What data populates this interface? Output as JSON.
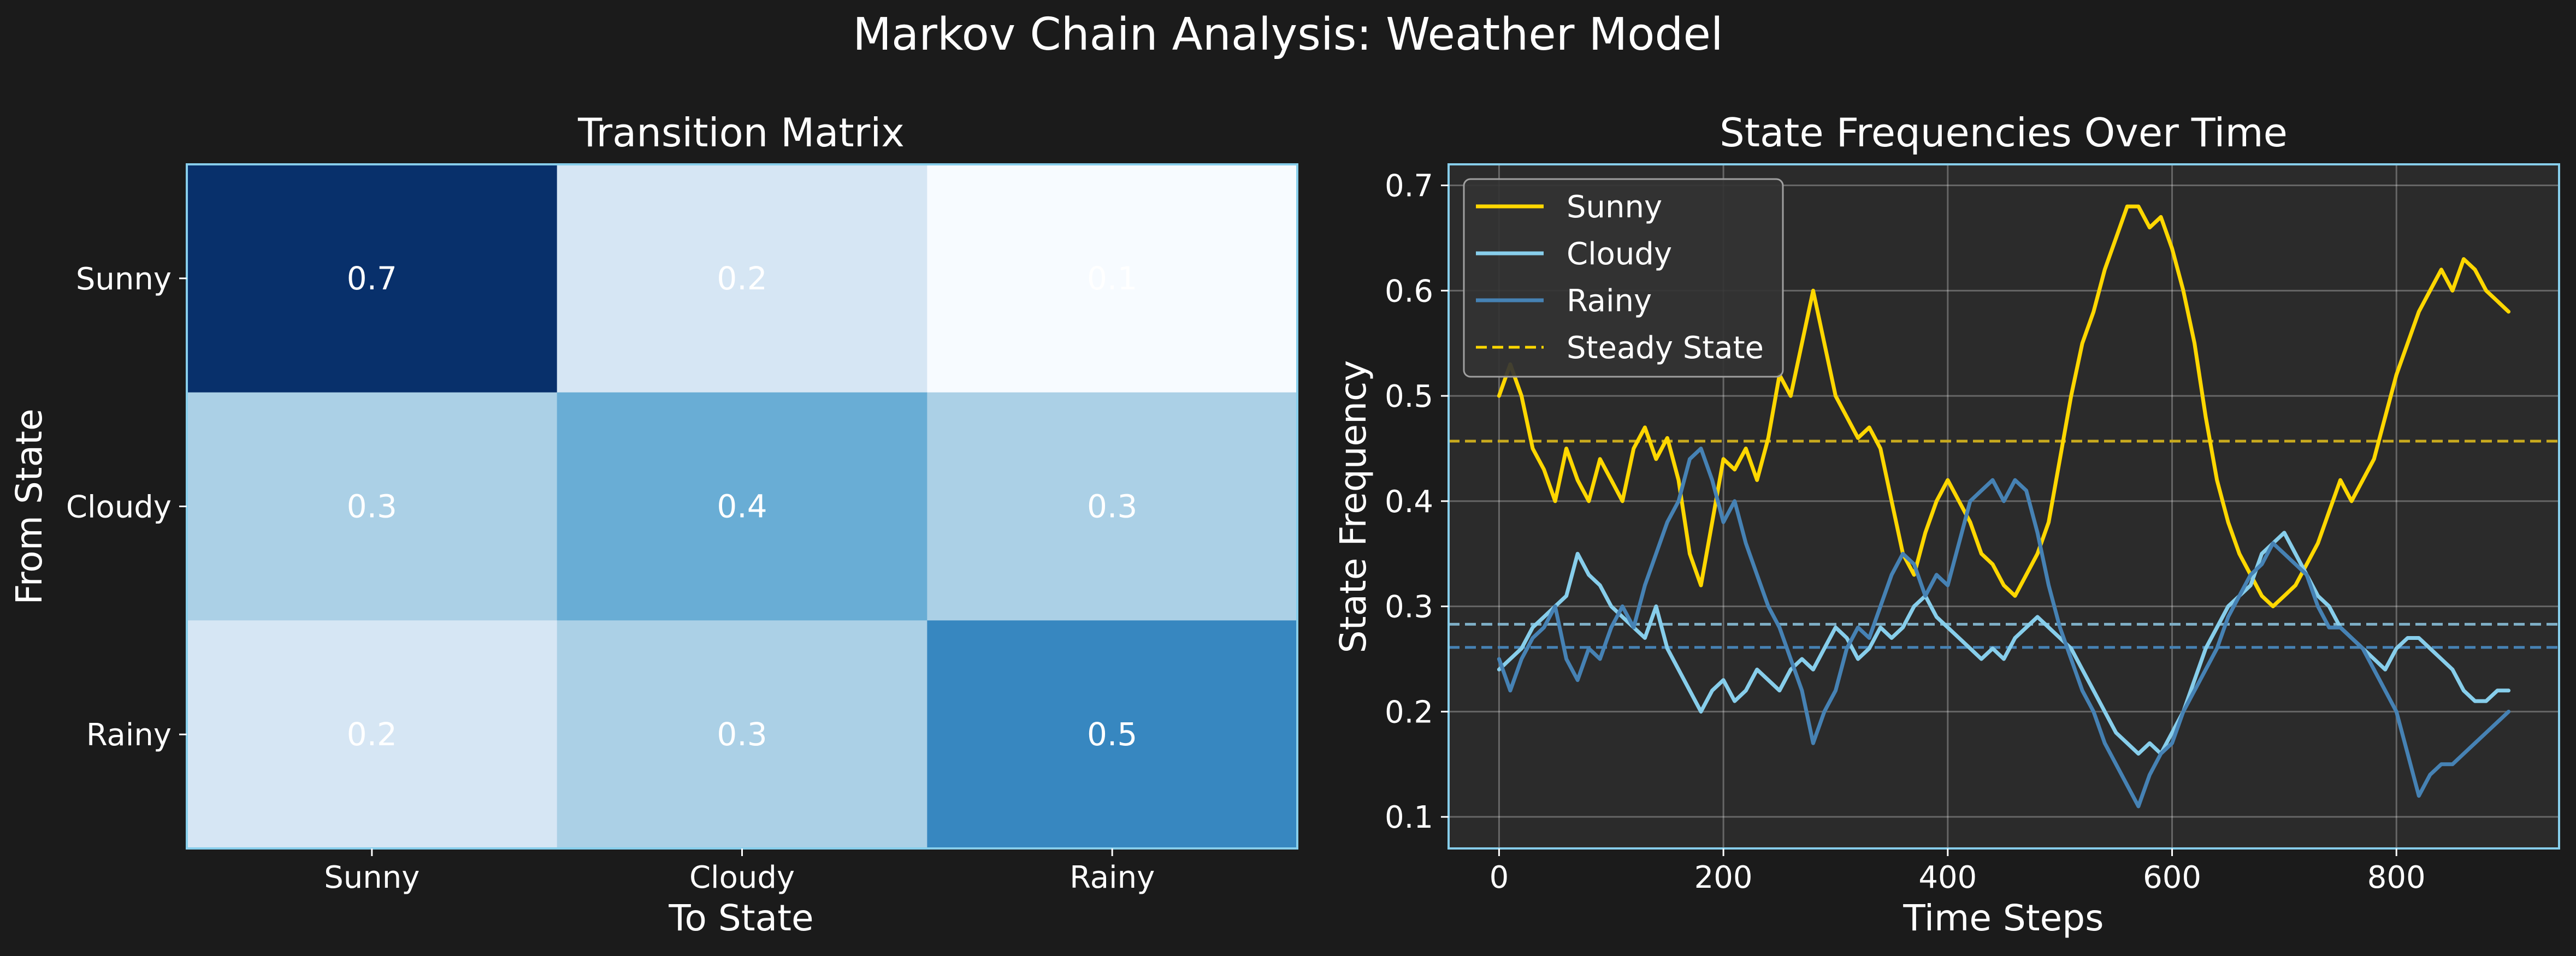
{
  "figure": {
    "title": "Markov Chain Analysis: Weather Model"
  },
  "chart_data": [
    {
      "type": "heatmap",
      "title": "Transition Matrix",
      "xlabel": "To State",
      "ylabel": "From State",
      "x_categories": [
        "Sunny",
        "Cloudy",
        "Rainy"
      ],
      "y_categories": [
        "Sunny",
        "Cloudy",
        "Rainy"
      ],
      "values": [
        [
          0.7,
          0.2,
          0.1
        ],
        [
          0.3,
          0.4,
          0.3
        ],
        [
          0.2,
          0.3,
          0.5
        ]
      ],
      "value_labels": [
        [
          "0.7",
          "0.2",
          "0.1"
        ],
        [
          "0.3",
          "0.4",
          "0.3"
        ],
        [
          "0.2",
          "0.3",
          "0.5"
        ]
      ],
      "colormap": "Blues",
      "colors": {
        "0.7": "#08306b",
        "0.5": "#3787c0",
        "0.4": "#69add5",
        "0.3": "#abd0e6",
        "0.2": "#d6e6f4",
        "0.1": "#f7fbff",
        "frame": "#87ceeb"
      }
    },
    {
      "type": "line",
      "title": "State Frequencies Over Time",
      "xlabel": "Time Steps",
      "ylabel": "State Frequency",
      "xlim": [
        -45,
        945
      ],
      "ylim": [
        0.07,
        0.72
      ],
      "xticks": [
        0,
        200,
        400,
        600,
        800
      ],
      "yticks": [
        0.1,
        0.2,
        0.3,
        0.4,
        0.5,
        0.6,
        0.7
      ],
      "grid": true,
      "legend_position": "top-left",
      "background": "#2b2b2b",
      "frame_color": "#87ceeb",
      "series": [
        {
          "name": "Sunny",
          "color": "#ffd700",
          "x": [
            0,
            10,
            20,
            30,
            40,
            50,
            60,
            70,
            80,
            90,
            100,
            110,
            120,
            130,
            140,
            150,
            160,
            170,
            180,
            190,
            200,
            210,
            220,
            230,
            240,
            250,
            260,
            270,
            280,
            290,
            300,
            310,
            320,
            330,
            340,
            350,
            360,
            370,
            380,
            390,
            400,
            410,
            420,
            430,
            440,
            450,
            460,
            470,
            480,
            490,
            500,
            510,
            520,
            530,
            540,
            550,
            560,
            570,
            580,
            590,
            600,
            610,
            620,
            630,
            640,
            650,
            660,
            670,
            680,
            690,
            700,
            710,
            720,
            730,
            740,
            750,
            760,
            770,
            780,
            790,
            800,
            810,
            820,
            830,
            840,
            850,
            860,
            870,
            880,
            890,
            900
          ],
          "y": [
            0.5,
            0.53,
            0.5,
            0.45,
            0.43,
            0.4,
            0.45,
            0.42,
            0.4,
            0.44,
            0.42,
            0.4,
            0.45,
            0.47,
            0.44,
            0.46,
            0.42,
            0.35,
            0.32,
            0.38,
            0.44,
            0.43,
            0.45,
            0.42,
            0.46,
            0.52,
            0.5,
            0.55,
            0.6,
            0.55,
            0.5,
            0.48,
            0.46,
            0.47,
            0.45,
            0.4,
            0.35,
            0.33,
            0.37,
            0.4,
            0.42,
            0.4,
            0.38,
            0.35,
            0.34,
            0.32,
            0.31,
            0.33,
            0.35,
            0.38,
            0.44,
            0.5,
            0.55,
            0.58,
            0.62,
            0.65,
            0.68,
            0.68,
            0.66,
            0.67,
            0.64,
            0.6,
            0.55,
            0.48,
            0.42,
            0.38,
            0.35,
            0.33,
            0.31,
            0.3,
            0.31,
            0.32,
            0.34,
            0.36,
            0.39,
            0.42,
            0.4,
            0.42,
            0.44,
            0.48,
            0.52,
            0.55,
            0.58,
            0.6,
            0.62,
            0.6,
            0.63,
            0.62,
            0.6,
            0.59,
            0.58
          ]
        },
        {
          "name": "Cloudy",
          "color": "#87ceeb",
          "x": [
            0,
            10,
            20,
            30,
            40,
            50,
            60,
            70,
            80,
            90,
            100,
            110,
            120,
            130,
            140,
            150,
            160,
            170,
            180,
            190,
            200,
            210,
            220,
            230,
            240,
            250,
            260,
            270,
            280,
            290,
            300,
            310,
            320,
            330,
            340,
            350,
            360,
            370,
            380,
            390,
            400,
            410,
            420,
            430,
            440,
            450,
            460,
            470,
            480,
            490,
            500,
            510,
            520,
            530,
            540,
            550,
            560,
            570,
            580,
            590,
            600,
            610,
            620,
            630,
            640,
            650,
            660,
            670,
            680,
            690,
            700,
            710,
            720,
            730,
            740,
            750,
            760,
            770,
            780,
            790,
            800,
            810,
            820,
            830,
            840,
            850,
            860,
            870,
            880,
            890,
            900
          ],
          "y": [
            0.24,
            0.25,
            0.26,
            0.28,
            0.29,
            0.3,
            0.31,
            0.35,
            0.33,
            0.32,
            0.3,
            0.29,
            0.28,
            0.27,
            0.3,
            0.26,
            0.24,
            0.22,
            0.2,
            0.22,
            0.23,
            0.21,
            0.22,
            0.24,
            0.23,
            0.22,
            0.24,
            0.25,
            0.24,
            0.26,
            0.28,
            0.27,
            0.25,
            0.26,
            0.28,
            0.27,
            0.28,
            0.3,
            0.31,
            0.29,
            0.28,
            0.27,
            0.26,
            0.25,
            0.26,
            0.25,
            0.27,
            0.28,
            0.29,
            0.28,
            0.27,
            0.26,
            0.24,
            0.22,
            0.2,
            0.18,
            0.17,
            0.16,
            0.17,
            0.16,
            0.18,
            0.2,
            0.23,
            0.26,
            0.28,
            0.3,
            0.31,
            0.32,
            0.35,
            0.36,
            0.37,
            0.35,
            0.33,
            0.31,
            0.3,
            0.28,
            0.27,
            0.26,
            0.25,
            0.24,
            0.26,
            0.27,
            0.27,
            0.26,
            0.25,
            0.24,
            0.22,
            0.21,
            0.21,
            0.22,
            0.22
          ]
        },
        {
          "name": "Rainy",
          "color": "#4682b4",
          "x": [
            0,
            10,
            20,
            30,
            40,
            50,
            60,
            70,
            80,
            90,
            100,
            110,
            120,
            130,
            140,
            150,
            160,
            170,
            180,
            190,
            200,
            210,
            220,
            230,
            240,
            250,
            260,
            270,
            280,
            290,
            300,
            310,
            320,
            330,
            340,
            350,
            360,
            370,
            380,
            390,
            400,
            410,
            420,
            430,
            440,
            450,
            460,
            470,
            480,
            490,
            500,
            510,
            520,
            530,
            540,
            550,
            560,
            570,
            580,
            590,
            600,
            610,
            620,
            630,
            640,
            650,
            660,
            670,
            680,
            690,
            700,
            710,
            720,
            730,
            740,
            750,
            760,
            770,
            780,
            790,
            800,
            810,
            820,
            830,
            840,
            850,
            860,
            870,
            880,
            890,
            900
          ],
          "y": [
            0.25,
            0.22,
            0.25,
            0.27,
            0.28,
            0.3,
            0.25,
            0.23,
            0.26,
            0.25,
            0.28,
            0.3,
            0.28,
            0.32,
            0.35,
            0.38,
            0.4,
            0.44,
            0.45,
            0.42,
            0.38,
            0.4,
            0.36,
            0.33,
            0.3,
            0.28,
            0.25,
            0.22,
            0.17,
            0.2,
            0.22,
            0.26,
            0.28,
            0.27,
            0.3,
            0.33,
            0.35,
            0.34,
            0.31,
            0.33,
            0.32,
            0.36,
            0.4,
            0.41,
            0.42,
            0.4,
            0.42,
            0.41,
            0.37,
            0.32,
            0.28,
            0.25,
            0.22,
            0.2,
            0.17,
            0.15,
            0.13,
            0.11,
            0.14,
            0.16,
            0.17,
            0.2,
            0.22,
            0.24,
            0.26,
            0.29,
            0.31,
            0.33,
            0.34,
            0.36,
            0.35,
            0.34,
            0.33,
            0.3,
            0.28,
            0.28,
            0.27,
            0.26,
            0.24,
            0.22,
            0.2,
            0.16,
            0.12,
            0.14,
            0.15,
            0.15,
            0.16,
            0.17,
            0.18,
            0.19,
            0.2
          ]
        },
        {
          "name": "Steady State",
          "color": "#ffd700",
          "dashed": true,
          "steady_values": [
            0.457,
            0.283,
            0.261
          ],
          "steady_colors": [
            "#c9aa1e",
            "#7fb0c8",
            "#4682b4"
          ]
        }
      ]
    }
  ]
}
